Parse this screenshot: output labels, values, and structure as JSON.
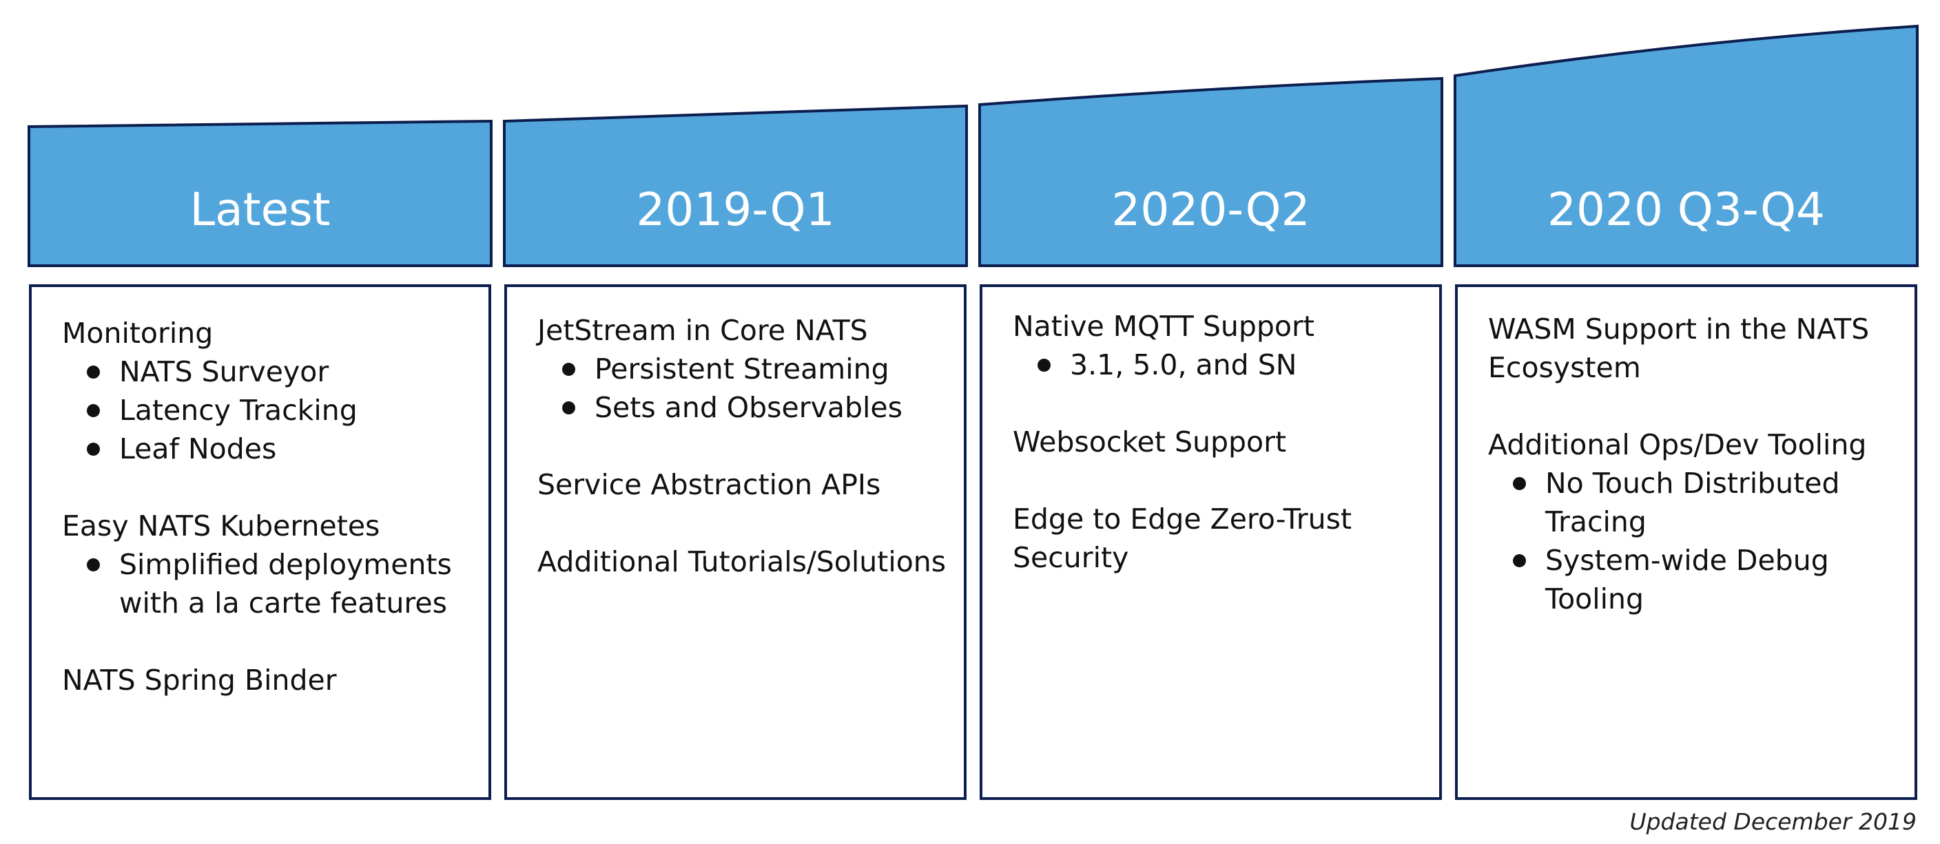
{
  "colors": {
    "header_fill": "#53a6db",
    "outline": "#0c1e50",
    "text": "#111111",
    "header_text": "#ffffff"
  },
  "columns": [
    {
      "label": "Latest",
      "sections": [
        {
          "title": "Monitoring",
          "bullets": [
            "NATS Surveyor",
            "Latency Tracking",
            "Leaf Nodes"
          ]
        },
        {
          "title": "Easy NATS Kubernetes",
          "bullets": [
            "Simplified deployments with a la carte features"
          ]
        },
        {
          "title": "NATS Spring Binder",
          "bullets": []
        }
      ]
    },
    {
      "label": "2019-Q1",
      "sections": [
        {
          "title": "JetStream in Core NATS",
          "bullets": [
            "Persistent Streaming",
            "Sets and Observables"
          ]
        },
        {
          "title": "Service Abstraction APIs",
          "bullets": []
        },
        {
          "title": "Additional Tutorials/Solutions",
          "bullets": []
        }
      ]
    },
    {
      "label": "2020-Q2",
      "sections": [
        {
          "title": "Native MQTT Support",
          "bullets": [
            "3.1, 5.0, and SN"
          ]
        },
        {
          "title": "Websocket Support",
          "bullets": []
        },
        {
          "title": "Edge to Edge Zero-Trust Security",
          "bullets": []
        }
      ]
    },
    {
      "label": "2020 Q3-Q4",
      "sections": [
        {
          "title": "WASM Support in the NATS Ecosystem",
          "bullets": []
        },
        {
          "title": "Additional Ops/Dev Tooling",
          "bullets": [
            "No Touch Distributed Tracing",
            "System-wide Debug Tooling"
          ]
        }
      ]
    }
  ],
  "footer": {
    "note": "Updated December 2019"
  }
}
